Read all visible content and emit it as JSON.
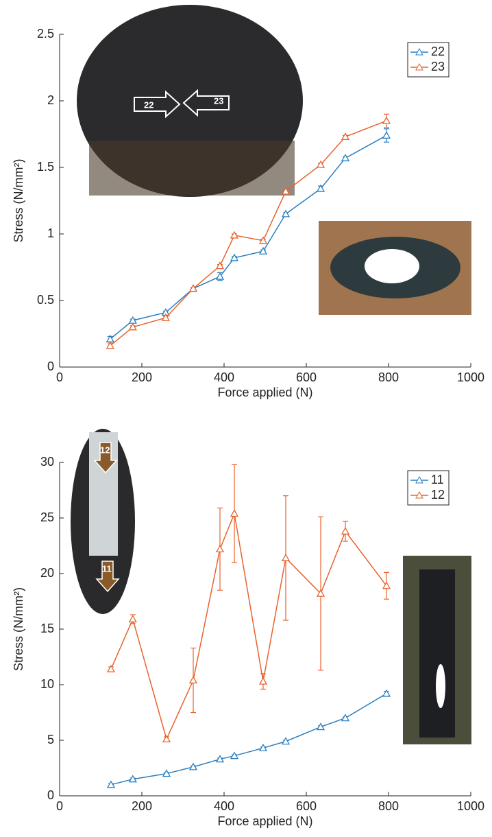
{
  "chart_data": [
    {
      "type": "line",
      "xlabel": "Force applied (N)",
      "ylabel": "Stress (N/mm²)",
      "x": [
        123,
        178,
        258,
        325,
        390,
        425,
        495,
        550,
        635,
        695,
        795
      ],
      "series": [
        {
          "name": "22",
          "color": "#2a7fc1",
          "values": [
            0.21,
            0.35,
            0.41,
            0.59,
            0.68,
            0.82,
            0.87,
            1.15,
            1.34,
            1.57,
            1.74
          ],
          "errors": [
            0.02,
            0.01,
            0.01,
            0.01,
            0.03,
            0.01,
            0.01,
            0.01,
            0.02,
            0.01,
            0.05
          ]
        },
        {
          "name": "23",
          "color": "#e8622c",
          "values": [
            0.16,
            0.3,
            0.37,
            0.59,
            0.76,
            0.99,
            0.95,
            1.32,
            1.52,
            1.73,
            1.85
          ],
          "errors": [
            0.02,
            0.01,
            0.01,
            0.01,
            0.01,
            0.01,
            0.01,
            0.01,
            0.01,
            0.01,
            0.05
          ]
        }
      ],
      "xlim": [
        0,
        1000
      ],
      "ylim": [
        0,
        2.5
      ],
      "xticks": [
        0,
        200,
        400,
        600,
        800,
        1000
      ],
      "yticks": [
        0,
        0.5,
        1,
        1.5,
        2,
        2.5
      ],
      "legend": "upper right",
      "annotations": [
        "22",
        "23"
      ]
    },
    {
      "type": "line",
      "xlabel": "Force applied (N)",
      "ylabel": "Stress (N/mm²)",
      "x": [
        125,
        178,
        260,
        325,
        390,
        425,
        495,
        550,
        635,
        695,
        795
      ],
      "series": [
        {
          "name": "11",
          "color": "#2a7fc1",
          "values": [
            1.0,
            1.5,
            2.0,
            2.6,
            3.3,
            3.6,
            4.3,
            4.9,
            6.2,
            7.0,
            9.2
          ],
          "errors": [
            0.1,
            0.1,
            0.1,
            0.1,
            0.1,
            0.1,
            0.1,
            0.1,
            0.1,
            0.1,
            0.2
          ]
        },
        {
          "name": "12",
          "color": "#e8622c",
          "values": [
            11.4,
            15.9,
            5.1,
            10.4,
            22.2,
            25.4,
            10.3,
            21.4,
            18.2,
            23.8,
            18.9
          ],
          "errors": [
            0.2,
            0.4,
            0.2,
            2.9,
            3.7,
            4.4,
            0.7,
            5.6,
            6.9,
            0.9,
            1.2
          ]
        }
      ],
      "xlim": [
        0,
        1000
      ],
      "ylim": [
        0,
        30
      ],
      "xticks": [
        0,
        200,
        400,
        600,
        800,
        1000
      ],
      "yticks": [
        0,
        5,
        10,
        15,
        20,
        25,
        30
      ],
      "legend": "upper right",
      "annotations": [
        "12",
        "11"
      ]
    }
  ]
}
